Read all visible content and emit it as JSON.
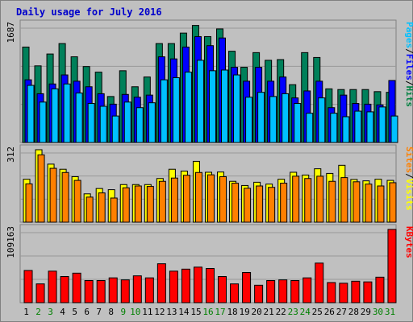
{
  "chart_data": {
    "type": "bar",
    "title": "Daily usage for July 2016",
    "categories": [
      "1",
      "2",
      "3",
      "4",
      "5",
      "6",
      "7",
      "8",
      "9",
      "10",
      "11",
      "12",
      "13",
      "14",
      "15",
      "16",
      "17",
      "18",
      "19",
      "20",
      "21",
      "22",
      "23",
      "24",
      "25",
      "26",
      "27",
      "28",
      "29",
      "30",
      "31"
    ],
    "weekend_days": [
      "2",
      "3",
      "9",
      "10",
      "16",
      "17",
      "23",
      "24",
      "30",
      "31"
    ],
    "colors": {
      "background": "#c0c0c0",
      "frame": "#808080",
      "title": "#0000cc",
      "hits": "#008040",
      "files": "#0000ff",
      "pages": "#00c0ff",
      "visits": "#ffff00",
      "sites": "#ff8000",
      "kbytes": "#ff0000",
      "weekday_label": "#000000",
      "weekend_label": "#008000",
      "gridline": "#999999"
    },
    "panels": [
      {
        "name": "hits-files-pages",
        "max_label": "1687",
        "ylim": [
          0,
          1687
        ],
        "legend": [
          {
            "text": "Pages",
            "color": "#00c0ff"
          },
          {
            "text": "/",
            "color": "#000000"
          },
          {
            "text": "Files",
            "color": "#0000ff"
          },
          {
            "text": "/",
            "color": "#000000"
          },
          {
            "text": "Hits",
            "color": "#008040"
          }
        ],
        "series": [
          {
            "name": "Hits",
            "color": "#00805a",
            "values": [
              1370,
              1100,
              1270,
              1420,
              1230,
              1090,
              1010,
              660,
              1030,
              800,
              940,
              1420,
              1420,
              1570,
              1680,
              1520,
              1630,
              1310,
              1080,
              1290,
              1180,
              1190,
              830,
              1290,
              1220,
              770,
              760,
              760,
              760,
              730,
              720
            ]
          },
          {
            "name": "Files",
            "color": "#0000ff",
            "values": [
              900,
              700,
              840,
              970,
              880,
              800,
              700,
              550,
              690,
              650,
              680,
              1230,
              1200,
              1370,
              1520,
              1390,
              1500,
              1080,
              880,
              1080,
              880,
              940,
              640,
              740,
              880,
              500,
              680,
              560,
              550,
              540,
              890
            ]
          },
          {
            "name": "Pages",
            "color": "#00c0ff",
            "values": [
              820,
              580,
              770,
              840,
              710,
              560,
              520,
              380,
              580,
              500,
              570,
              900,
              930,
              1010,
              1180,
              1030,
              1040,
              970,
              650,
              720,
              660,
              700,
              560,
              420,
              640,
              420,
              370,
              450,
              440,
              510,
              380
            ]
          }
        ]
      },
      {
        "name": "visits-sites",
        "max_label": "312",
        "ylim": [
          0,
          312
        ],
        "legend": [
          {
            "text": "Sites",
            "color": "#ff8000"
          },
          {
            "text": "/",
            "color": "#000000"
          },
          {
            "text": "Visits",
            "color": "#ffff00"
          }
        ],
        "series": [
          {
            "name": "Visits",
            "color": "#ffff00",
            "values": [
              185,
              312,
              250,
              228,
              196,
              122,
              145,
              140,
              162,
              162,
              162,
              188,
              228,
              220,
              262,
              215,
              216,
              176,
              158,
              172,
              164,
              185,
              215,
              203,
              230,
              210,
              245,
              184,
              178,
              185,
              180
            ]
          },
          {
            "name": "Sites",
            "color": "#ff8000",
            "values": [
              165,
              290,
              232,
              214,
              180,
              108,
              126,
              104,
              148,
              156,
              154,
              176,
              190,
              202,
              214,
              204,
              196,
              168,
              146,
              156,
              150,
              168,
              198,
              188,
              198,
              176,
              192,
              174,
              164,
              156,
              170
            ]
          }
        ]
      },
      {
        "name": "kbytes",
        "max_label": "109163",
        "ylim": [
          0,
          109163
        ],
        "legend": [
          {
            "text": "KBytes",
            "color": "#ff0000"
          }
        ],
        "series": [
          {
            "name": "KBytes",
            "color": "#ff0000",
            "values": [
              48000,
              28000,
              47000,
              39000,
              44000,
              33000,
              33000,
              37000,
              34000,
              40000,
              37000,
              58000,
              47000,
              50000,
              53000,
              51000,
              39000,
              28000,
              45000,
              26000,
              33000,
              34000,
              33000,
              37000,
              59000,
              30000,
              29000,
              32000,
              31000,
              38000,
              109163
            ]
          }
        ]
      }
    ]
  }
}
